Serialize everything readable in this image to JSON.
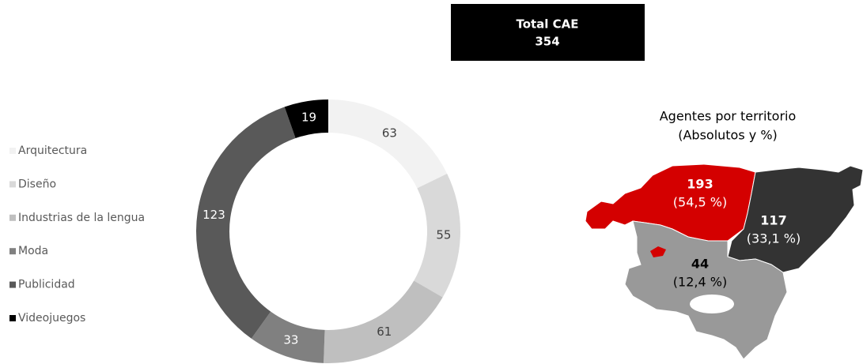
{
  "chart_data": {
    "type": "pie",
    "categories": [
      "Arquitectura",
      "Diseño",
      "Industrias de la lengua",
      "Moda",
      "Publicidad",
      "Videojuegos"
    ],
    "values": [
      63,
      55,
      61,
      33,
      123,
      19
    ],
    "colors": [
      "#f2f2f2",
      "#d9d9d9",
      "#bfbfbf",
      "#808080",
      "#595959",
      "#000000"
    ],
    "legend": "left"
  },
  "total": {
    "label": "Total CAE",
    "value": 354
  },
  "map": {
    "title": [
      "Agentes por territorio",
      "(Absolutos y %)"
    ],
    "values": [
      193,
      117,
      44
    ],
    "shares": [
      54.5,
      33.1,
      12.4
    ],
    "share_labels": [
      "(54,5 %)",
      "(33,1 %)",
      "(12,4 %)"
    ],
    "colors": [
      "#d40000",
      "#333333",
      "#999999"
    ]
  }
}
